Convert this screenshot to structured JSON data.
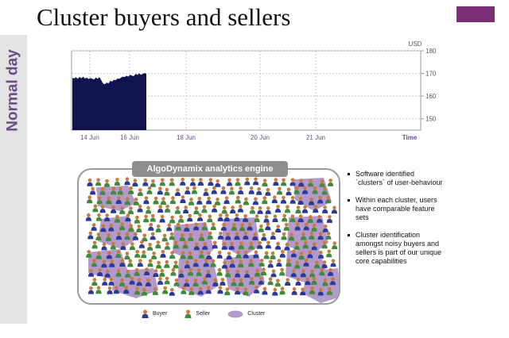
{
  "slide": {
    "title": "Cluster buyers and sellers",
    "side_label": "Normal day",
    "accent_color": "#7a2f77",
    "side_label_color": "#6b4a8c"
  },
  "chart_data": {
    "type": "area",
    "title": "",
    "unit_label": "USD",
    "xlabel": "Time",
    "ylabel": "",
    "x_ticks": [
      "14 Jun",
      "16 Jun",
      "18 Jun",
      "20 Jun",
      "21 Jun"
    ],
    "y_ticks": [
      150,
      160,
      170,
      180
    ],
    "ylim": [
      145,
      180
    ],
    "grid": true,
    "fill_color": "#0f1450",
    "series": [
      {
        "values": [
          168,
          167.8,
          168.3,
          167.6,
          168.5,
          167.9,
          168.6,
          167.7,
          168.2,
          167.5,
          168.0,
          167.6,
          167.3,
          168.2,
          167.6,
          168.4,
          167.0,
          165.6,
          165.2,
          166.0,
          165.5,
          166.8,
          166.4,
          167.2,
          167.0,
          167.8,
          167.6,
          168.2,
          168.6,
          168.4,
          169.0,
          168.6,
          169.4,
          169.0,
          168.8,
          169.8,
          169.4,
          170.0,
          169.4,
          169.8,
          170.2,
          169.8
        ]
      }
    ]
  },
  "engine": {
    "title": "AlgoDynamix analytics engine"
  },
  "legend": {
    "buyer": "Buyer",
    "seller": "Seller",
    "cluster": "Cluster",
    "buyer_color": "#2a3a9a",
    "seller_color": "#3f8a3c",
    "cluster_color": "#b49acb"
  },
  "bullets": [
    "Software identified `clusters` of user-behaviour",
    "Within each cluster, users have comparable feature sets",
    "Cluster identification amongst noisy buyers and sellers is part of our unique core capabilities"
  ]
}
